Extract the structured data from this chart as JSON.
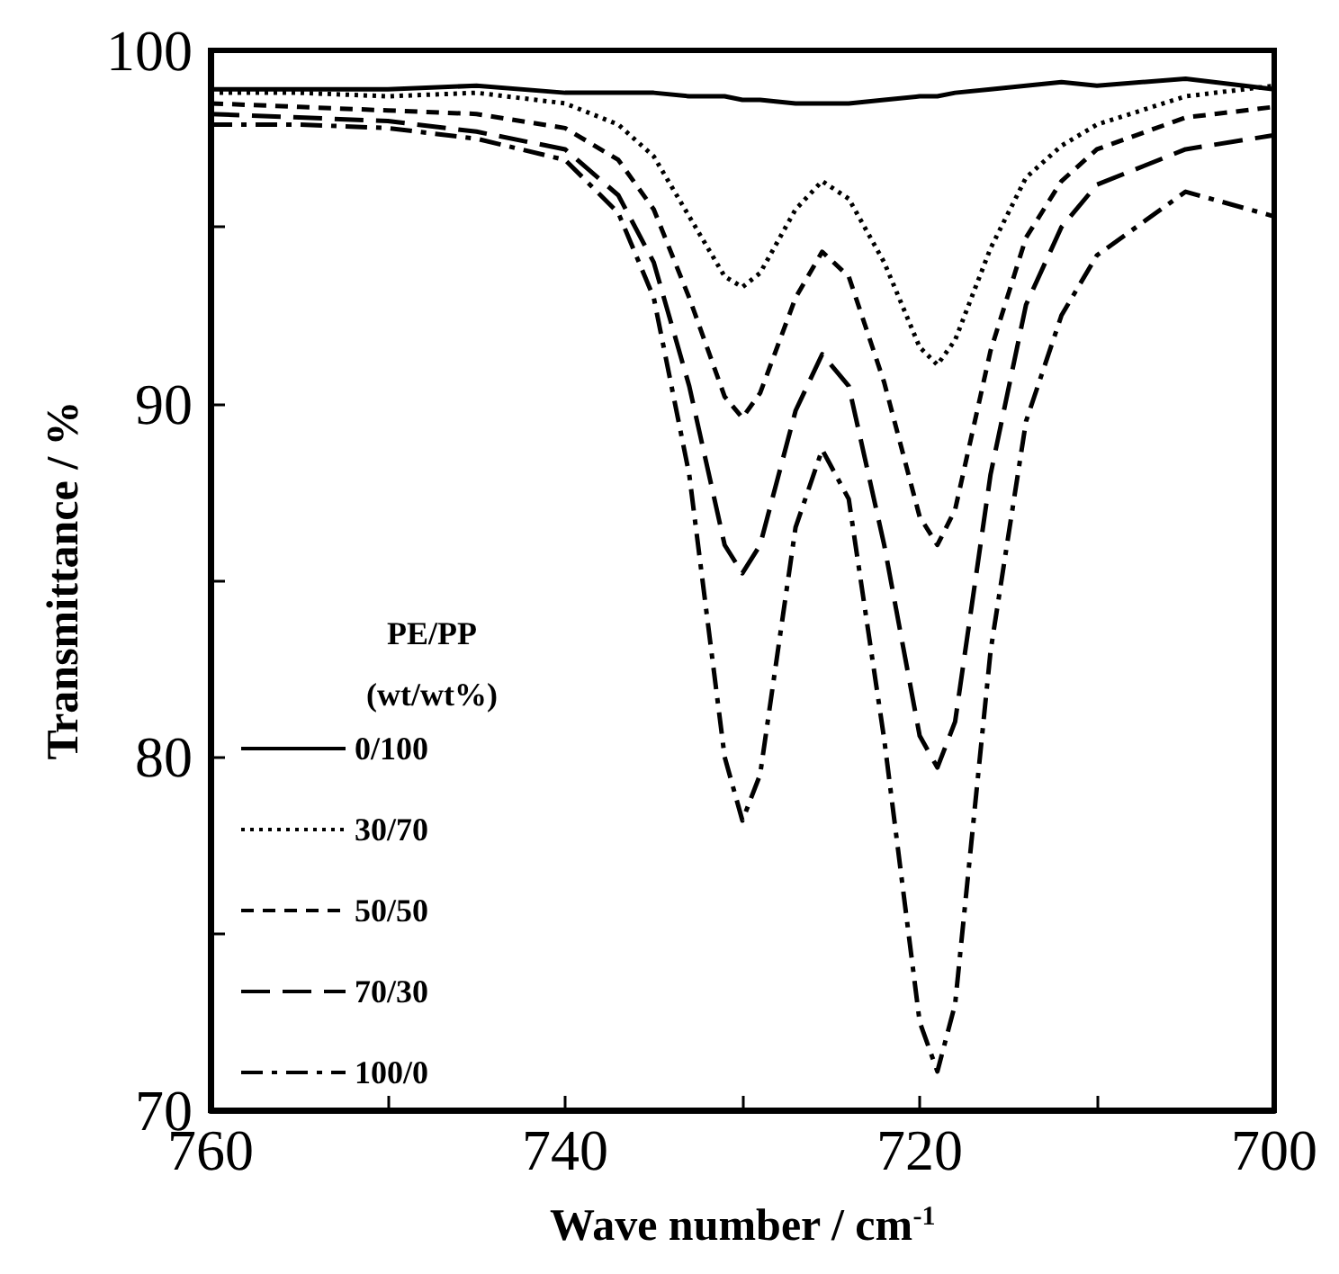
{
  "chart_data": {
    "type": "line",
    "xlabel": "Wave number / cm$^{-1}$",
    "ylabel": "Transmittance / %",
    "legend_title": "PE/PP\n(wt/wt%)",
    "x": [
      760,
      755,
      750,
      745,
      740,
      737,
      735,
      733,
      731,
      730,
      729,
      727,
      725.5,
      724,
      722,
      720,
      719,
      718,
      716,
      714,
      712,
      710,
      705,
      700
    ],
    "xlim": [
      760,
      700
    ],
    "xticks": [
      760,
      {
        "value": 750,
        "label": null
      },
      740,
      {
        "value": 730,
        "label": null
      },
      720,
      {
        "value": 710,
        "label": null
      },
      700
    ],
    "ylim": [
      70,
      100
    ],
    "yticks": [
      70,
      {
        "value": 75,
        "label": null
      },
      80,
      {
        "value": 85,
        "label": null
      },
      90,
      {
        "value": 95,
        "label": null
      },
      100
    ],
    "grid": false,
    "legend": "bottom left",
    "marker": "none",
    "series": [
      {
        "name": "0/100",
        "color": "#000000",
        "line_style": "solid",
        "values": [
          98.9,
          98.9,
          98.9,
          99.0,
          98.8,
          98.8,
          98.8,
          98.7,
          98.7,
          98.6,
          98.6,
          98.5,
          98.5,
          98.5,
          98.6,
          98.7,
          98.7,
          98.8,
          98.9,
          99.0,
          99.1,
          99.0,
          99.2,
          98.9
        ]
      },
      {
        "name": "30/70",
        "color": "#000000",
        "line_style": "dotted",
        "values": [
          98.8,
          98.8,
          98.7,
          98.8,
          98.5,
          97.9,
          97.0,
          95.3,
          93.6,
          93.3,
          93.7,
          95.5,
          96.3,
          95.8,
          94.0,
          91.6,
          91.1,
          91.8,
          94.4,
          96.4,
          97.3,
          97.9,
          98.7,
          99.0
        ]
      },
      {
        "name": "50/50",
        "color": "#000000",
        "line_style": "dashed",
        "values": [
          98.5,
          98.4,
          98.3,
          98.2,
          97.8,
          96.9,
          95.5,
          93.0,
          90.2,
          89.6,
          90.3,
          93.0,
          94.3,
          93.6,
          90.6,
          86.8,
          86.0,
          87.0,
          91.5,
          94.7,
          96.3,
          97.2,
          98.1,
          98.4
        ]
      },
      {
        "name": "70/30",
        "color": "#000000",
        "line_style": "longdash",
        "values": [
          98.2,
          98.1,
          98.0,
          97.7,
          97.2,
          95.9,
          94.0,
          90.5,
          86.0,
          85.2,
          86.0,
          89.8,
          91.4,
          90.5,
          86.0,
          80.6,
          79.7,
          81.0,
          88.0,
          92.8,
          95.0,
          96.2,
          97.2,
          97.6
        ]
      },
      {
        "name": "100/0",
        "color": "#000000",
        "line_style": "dashdot",
        "values": [
          97.9,
          97.9,
          97.8,
          97.5,
          96.9,
          95.4,
          93.0,
          88.0,
          80.0,
          78.2,
          79.5,
          86.5,
          88.7,
          87.3,
          80.5,
          72.5,
          71.1,
          73.0,
          83.0,
          89.5,
          92.5,
          94.2,
          96.0,
          95.3
        ]
      }
    ]
  }
}
